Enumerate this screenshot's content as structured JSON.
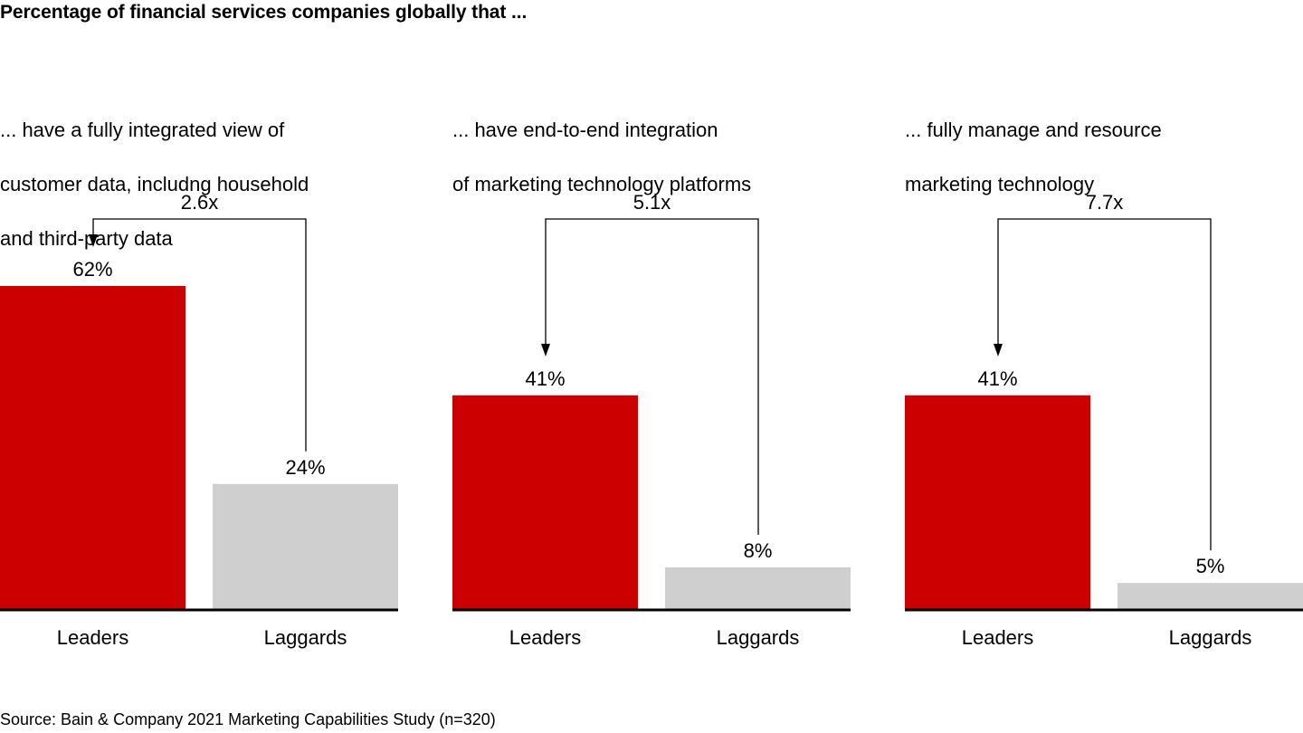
{
  "title": "Percentage of financial services companies globally that ...",
  "source": "Source: Bain & Company 2021 Marketing Capabilities Study (n=320)",
  "colors": {
    "leaders": "#CC0000",
    "laggards": "#CFCFCF",
    "axis": "#000000",
    "annotation": "#000000"
  },
  "chart_data": [
    {
      "type": "bar",
      "title": "... have a fully integrated view of customer data, includng household and third-party data",
      "title_lines": [
        "... have a fully integrated view of",
        "customer data, includng household",
        "and third-party data"
      ],
      "categories": [
        "Leaders",
        "Laggards"
      ],
      "values": [
        62,
        24
      ],
      "value_labels": [
        "62%",
        "24%"
      ],
      "unit": "%",
      "multiplier_label": "2.6x",
      "xlabel": "",
      "ylabel": "",
      "ylim": [
        0,
        62
      ],
      "grid": false,
      "legend": "none"
    },
    {
      "type": "bar",
      "title": "... have end-to-end integration of marketing technology platforms",
      "title_lines": [
        "... have end-to-end integration",
        "of marketing technology platforms"
      ],
      "categories": [
        "Leaders",
        "Laggards"
      ],
      "values": [
        41,
        8
      ],
      "value_labels": [
        "41%",
        "8%"
      ],
      "unit": "%",
      "multiplier_label": "5.1x",
      "xlabel": "",
      "ylabel": "",
      "ylim": [
        0,
        62
      ],
      "grid": false,
      "legend": "none"
    },
    {
      "type": "bar",
      "title": "... fully manage and resource marketing technology",
      "title_lines": [
        "... fully manage and resource",
        "marketing technology"
      ],
      "categories": [
        "Leaders",
        "Laggards"
      ],
      "values": [
        41,
        5
      ],
      "value_labels": [
        "41%",
        "5%"
      ],
      "unit": "%",
      "multiplier_label": "7.7x",
      "xlabel": "",
      "ylabel": "",
      "ylim": [
        0,
        62
      ],
      "grid": false,
      "legend": "none"
    }
  ]
}
